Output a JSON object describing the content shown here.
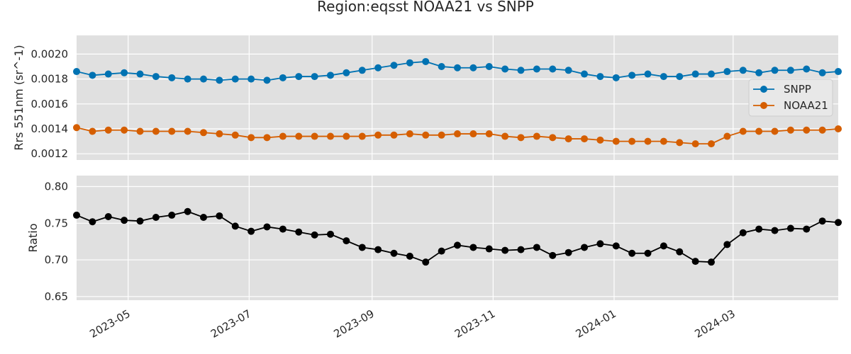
{
  "figure_title": "Region:eqsst NOAA21 vs SNPP",
  "colors": {
    "background": "#e0e0e0",
    "grid": "#ffffff",
    "snpp": "#0072b2",
    "noaa21": "#d55e00",
    "ratio": "#000000"
  },
  "chart_data": [
    {
      "type": "line",
      "ylabel": "Rrs 551nm (sr^-1)",
      "ylim": [
        0.00115,
        0.00215
      ],
      "yticks": [
        "0.0012",
        "0.0014",
        "0.0016",
        "0.0018",
        "0.0020"
      ],
      "xticks": [
        "2023-05",
        "2023-07",
        "2023-09",
        "2023-11",
        "2024-01",
        "2024-03"
      ],
      "xticks_labeled": false,
      "grid": true,
      "legend": "right",
      "x": [
        "2023-04-05",
        "2023-04-13",
        "2023-04-21",
        "2023-04-29",
        "2023-05-07",
        "2023-05-15",
        "2023-05-23",
        "2023-05-31",
        "2023-06-08",
        "2023-06-16",
        "2023-06-24",
        "2023-07-02",
        "2023-07-10",
        "2023-07-18",
        "2023-07-26",
        "2023-08-03",
        "2023-08-11",
        "2023-08-19",
        "2023-08-27",
        "2023-09-04",
        "2023-09-12",
        "2023-09-20",
        "2023-09-28",
        "2023-10-06",
        "2023-10-14",
        "2023-10-22",
        "2023-10-30",
        "2023-11-07",
        "2023-11-15",
        "2023-11-23",
        "2023-12-01",
        "2023-12-09",
        "2023-12-17",
        "2023-12-25",
        "2024-01-02",
        "2024-01-10",
        "2024-01-18",
        "2024-01-26",
        "2024-02-03",
        "2024-02-11",
        "2024-02-19",
        "2024-02-27",
        "2024-03-06",
        "2024-03-14",
        "2024-03-22",
        "2024-03-30",
        "2024-04-07",
        "2024-04-15",
        "2024-04-23"
      ],
      "series": [
        {
          "name": "SNPP",
          "values": [
            0.00186,
            0.00183,
            0.00184,
            0.00185,
            0.00184,
            0.00182,
            0.00181,
            0.0018,
            0.0018,
            0.00179,
            0.0018,
            0.0018,
            0.00179,
            0.00181,
            0.00182,
            0.00182,
            0.00183,
            0.00185,
            0.00187,
            0.00189,
            0.00191,
            0.00193,
            0.00194,
            0.0019,
            0.00189,
            0.00189,
            0.0019,
            0.00188,
            0.00187,
            0.00188,
            0.00188,
            0.00187,
            0.00184,
            0.00182,
            0.00181,
            0.00183,
            0.00184,
            0.00182,
            0.00182,
            0.00184,
            0.00184,
            0.00186,
            0.00187,
            0.00185,
            0.00187,
            0.00187,
            0.00188,
            0.00185,
            0.00186
          ]
        },
        {
          "name": "NOAA21",
          "values": [
            0.00141,
            0.00138,
            0.00139,
            0.00139,
            0.00138,
            0.00138,
            0.00138,
            0.00138,
            0.00137,
            0.00136,
            0.00135,
            0.00133,
            0.00133,
            0.00134,
            0.00134,
            0.00134,
            0.00134,
            0.00134,
            0.00134,
            0.00135,
            0.00135,
            0.00136,
            0.00135,
            0.00135,
            0.00136,
            0.00136,
            0.00136,
            0.00134,
            0.00133,
            0.00134,
            0.00133,
            0.00132,
            0.00132,
            0.00131,
            0.0013,
            0.0013,
            0.0013,
            0.0013,
            0.00129,
            0.00128,
            0.00128,
            0.00134,
            0.00138,
            0.00138,
            0.00138,
            0.00139,
            0.00139,
            0.00139,
            0.0014
          ]
        }
      ]
    },
    {
      "type": "line",
      "ylabel": "Ratio",
      "ylim": [
        0.645,
        0.815
      ],
      "yticks": [
        "0.65",
        "0.70",
        "0.75",
        "0.80"
      ],
      "xticks": [
        "2023-05",
        "2023-07",
        "2023-09",
        "2023-11",
        "2024-01",
        "2024-03"
      ],
      "xticks_labeled": true,
      "grid": true,
      "x": [
        "2023-04-05",
        "2023-04-13",
        "2023-04-21",
        "2023-04-29",
        "2023-05-07",
        "2023-05-15",
        "2023-05-23",
        "2023-05-31",
        "2023-06-08",
        "2023-06-16",
        "2023-06-24",
        "2023-07-02",
        "2023-07-10",
        "2023-07-18",
        "2023-07-26",
        "2023-08-03",
        "2023-08-11",
        "2023-08-19",
        "2023-08-27",
        "2023-09-04",
        "2023-09-12",
        "2023-09-20",
        "2023-09-28",
        "2023-10-06",
        "2023-10-14",
        "2023-10-22",
        "2023-10-30",
        "2023-11-07",
        "2023-11-15",
        "2023-11-23",
        "2023-12-01",
        "2023-12-09",
        "2023-12-17",
        "2023-12-25",
        "2024-01-02",
        "2024-01-10",
        "2024-01-18",
        "2024-01-26",
        "2024-02-03",
        "2024-02-11",
        "2024-02-19",
        "2024-02-27",
        "2024-03-06",
        "2024-03-14",
        "2024-03-22",
        "2024-03-30",
        "2024-04-07",
        "2024-04-15",
        "2024-04-23"
      ],
      "series": [
        {
          "values": [
            0.761,
            0.752,
            0.759,
            0.754,
            0.753,
            0.758,
            0.761,
            0.766,
            0.758,
            0.76,
            0.746,
            0.739,
            0.745,
            0.742,
            0.738,
            0.734,
            0.735,
            0.726,
            0.717,
            0.714,
            0.709,
            0.705,
            0.697,
            0.712,
            0.72,
            0.717,
            0.715,
            0.713,
            0.714,
            0.717,
            0.706,
            0.71,
            0.717,
            0.722,
            0.719,
            0.709,
            0.709,
            0.719,
            0.711,
            0.698,
            0.697,
            0.721,
            0.737,
            0.742,
            0.74,
            0.743,
            0.742,
            0.753,
            0.751
          ]
        }
      ]
    }
  ]
}
